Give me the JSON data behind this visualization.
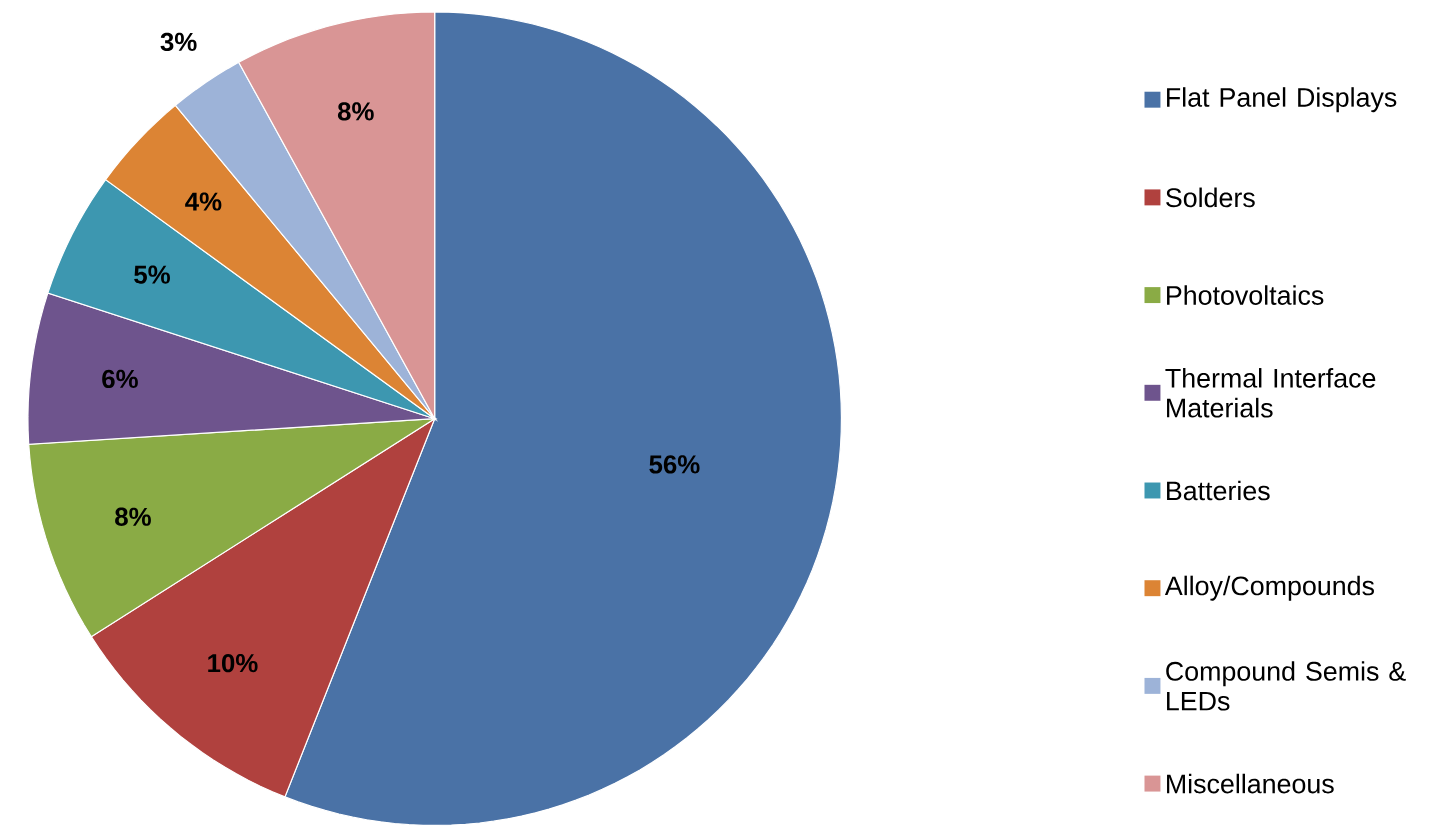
{
  "chart_data": {
    "type": "pie",
    "categories": [
      "Flat Panel Displays",
      "Solders",
      "Photovoltaics",
      "Thermal Interface Materials",
      "Batteries",
      "Alloy/Compounds",
      "Compound Semis & LEDs",
      "Miscellaneous"
    ],
    "values": [
      56,
      10,
      8,
      6,
      5,
      4,
      3,
      8
    ],
    "value_labels": [
      "56%",
      "10%",
      "8%",
      "6%",
      "5%",
      "4%",
      "3%",
      "8%"
    ],
    "colors": [
      "#4a72a6",
      "#b0413e",
      "#8aab45",
      "#6e548d",
      "#3d97b0",
      "#dc8434",
      "#9db3d8",
      "#d99595"
    ],
    "legend": "right"
  }
}
